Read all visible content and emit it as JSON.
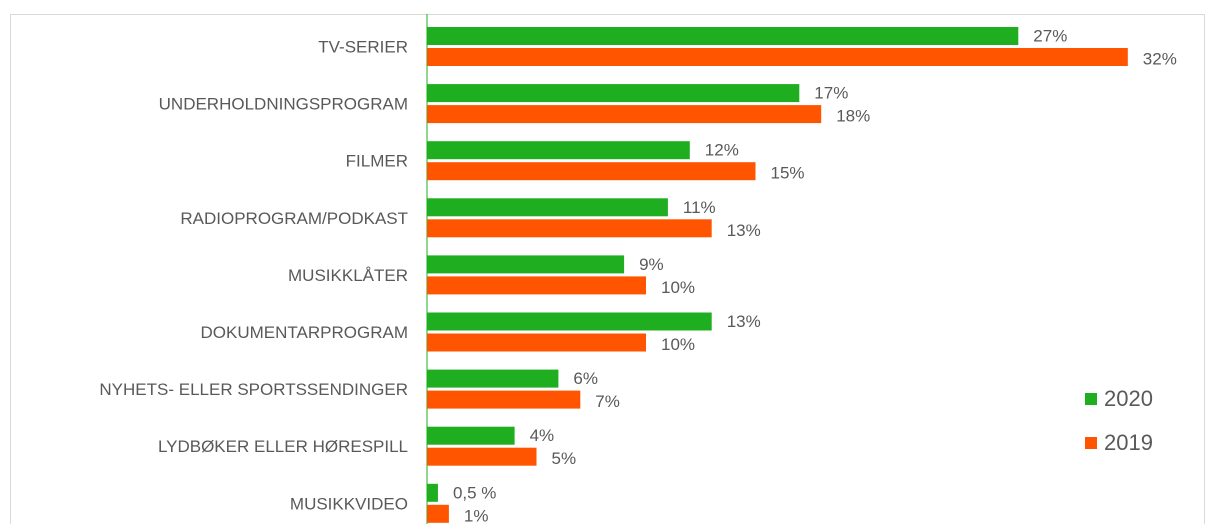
{
  "chart_data": {
    "type": "bar",
    "orientation": "horizontal",
    "categories": [
      "TV-SERIER",
      "UNDERHOLDNINGSPROGRAM",
      "FILMER",
      "RADIOPROGRAM/PODKAST",
      "MUSIKKLÅTER",
      "DOKUMENTARPROGRAM",
      "NYHETS- ELLER SPORTSSENDINGER",
      "LYDBØKER ELLER HØRESPILL",
      "MUSIKKVIDEO"
    ],
    "series": [
      {
        "name": "2020",
        "color": "#1fae1f",
        "values": [
          27,
          17,
          12,
          11,
          9,
          13,
          6,
          4,
          0.5
        ],
        "value_labels": [
          "27%",
          "17%",
          "12%",
          "11%",
          "9%",
          "13%",
          "6%",
          "4%",
          "0,5 %"
        ]
      },
      {
        "name": "2019",
        "color": "#ff5500",
        "values": [
          32,
          18,
          15,
          13,
          10,
          10,
          7,
          5,
          1
        ],
        "value_labels": [
          "32%",
          "18%",
          "15%",
          "13%",
          "10%",
          "10%",
          "7%",
          "5%",
          "1%"
        ]
      }
    ],
    "legend": "right"
  }
}
